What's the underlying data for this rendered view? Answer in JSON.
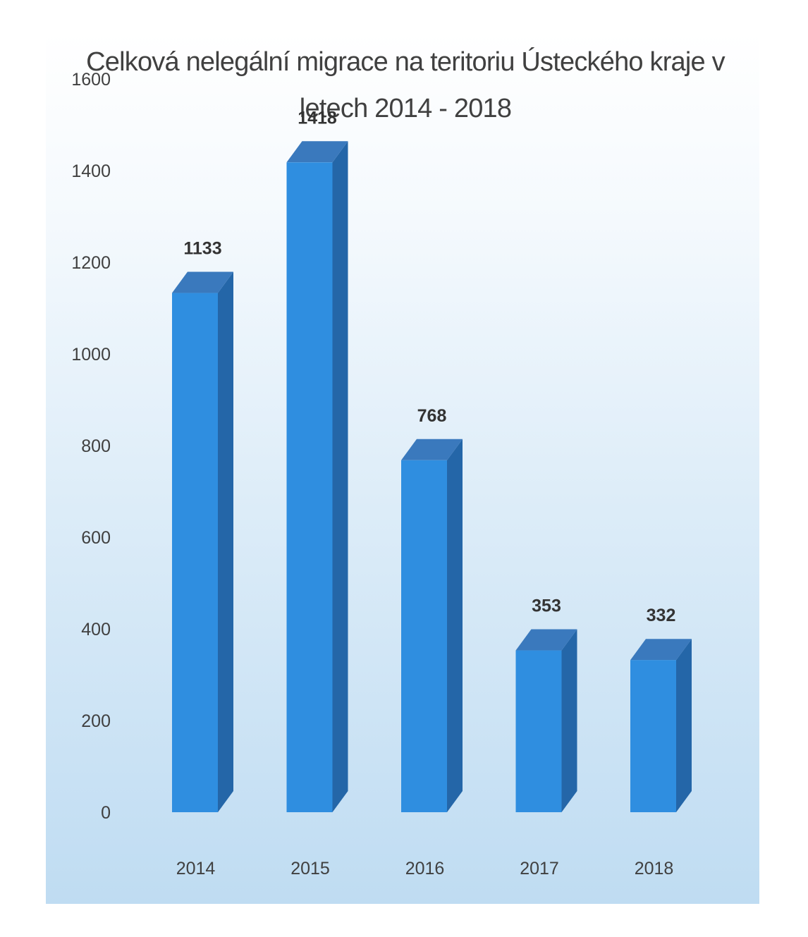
{
  "chart_data": {
    "type": "bar",
    "title": "Celková nelegální migrace na teritoriu Ústeckého kraje v letech 2014 - 2018",
    "categories": [
      "2014",
      "2015",
      "2016",
      "2017",
      "2018"
    ],
    "values": [
      1133,
      1418,
      768,
      353,
      332
    ],
    "data_labels": [
      "1133",
      "1418",
      "768",
      "353",
      "332"
    ],
    "y_ticks": [
      "0",
      "200",
      "400",
      "600",
      "800",
      "1000",
      "1200",
      "1400",
      "1600"
    ],
    "ylim": [
      0,
      1600
    ],
    "xlabel": "",
    "ylabel": "",
    "grid": false,
    "legend": "none",
    "style": "3d-column",
    "colors": {
      "bar_front": "#2f8ee0",
      "bar_side": "#2466a8",
      "bar_top": "#3a79bd"
    }
  }
}
